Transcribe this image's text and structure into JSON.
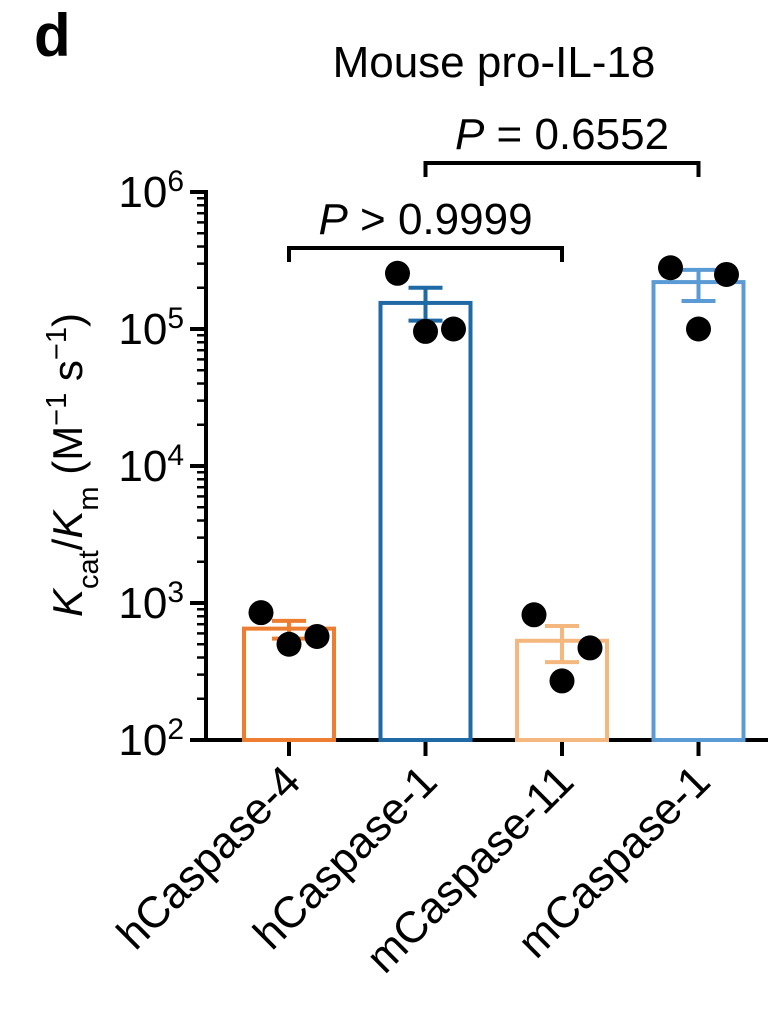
{
  "panel_label": "d",
  "chart_data": {
    "type": "bar",
    "title": "Mouse pro-IL-18",
    "ylabel": {
      "k": "K",
      "cat": "cat",
      "slash": "/",
      "k2": "K",
      "m": "m",
      "units_open": " (M",
      "units_exp1": "−1",
      "units_s": " s",
      "units_exp2": "−1",
      "units_close": ")"
    },
    "yscale": "log",
    "ylim": [
      100,
      1000000
    ],
    "ytick_values": [
      100,
      1000,
      10000,
      100000,
      1000000
    ],
    "ytick_labels": [
      {
        "base": "10",
        "exp": "2"
      },
      {
        "base": "10",
        "exp": "3"
      },
      {
        "base": "10",
        "exp": "4"
      },
      {
        "base": "10",
        "exp": "5"
      },
      {
        "base": "10",
        "exp": "6"
      }
    ],
    "categories": [
      "hCaspase-4",
      "hCaspase-1",
      "mCaspase-11",
      "mCaspase-1"
    ],
    "colors": [
      "#ED7D31",
      "#1F6AA5",
      "#F4B77E",
      "#5B9BD5"
    ],
    "means": [
      650,
      155000,
      530,
      220000
    ],
    "error_low": [
      550,
      115000,
      370,
      160000
    ],
    "error_high": [
      740,
      200000,
      680,
      270000
    ],
    "points": [
      [
        850,
        500,
        570
      ],
      [
        255000,
        96000,
        100000
      ],
      [
        820,
        270,
        470
      ],
      [
        280000,
        100000,
        250000
      ]
    ],
    "comparisons": [
      {
        "from": 0,
        "to": 2,
        "p_symbol": "P",
        "p_text": " > 0.9999",
        "level": 1
      },
      {
        "from": 1,
        "to": 3,
        "p_symbol": "P",
        "p_text": " = 0.6552",
        "level": 2
      }
    ],
    "grid": false,
    "legend": "none"
  }
}
